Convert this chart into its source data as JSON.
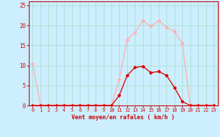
{
  "x_labels": [
    0,
    1,
    2,
    3,
    4,
    5,
    6,
    7,
    8,
    9,
    10,
    11,
    12,
    13,
    14,
    15,
    16,
    17,
    18,
    19,
    20,
    21,
    22,
    23
  ],
  "light_y": [
    10.5,
    0.1,
    0.1,
    0.1,
    0.1,
    0.1,
    0.1,
    0.1,
    0.1,
    0.1,
    0.1,
    6.5,
    16.5,
    18.2,
    21.2,
    19.8,
    21.2,
    19.5,
    18.5,
    15.5,
    0.1,
    0.1,
    0.1,
    0.1
  ],
  "dark_y": [
    0.0,
    0.0,
    0.0,
    0.0,
    0.0,
    0.0,
    0.0,
    0.0,
    0.0,
    0.0,
    0.0,
    2.5,
    7.5,
    9.5,
    9.8,
    8.2,
    8.5,
    7.5,
    4.5,
    1.0,
    0.0,
    0.0,
    0.0,
    0.0
  ],
  "light_color": "#FFB0B0",
  "dark_color": "#DD0000",
  "bg_color": "#CCEEFF",
  "grid_color": "#AADDCC",
  "axis_color": "#CC0000",
  "xlabel": "Vent moyen/en rafales ( km/h )",
  "ylim": [
    0,
    26
  ],
  "yticks": [
    0,
    5,
    10,
    15,
    20,
    25
  ],
  "marker": "D",
  "marker_size": 2,
  "line_width": 1.0
}
